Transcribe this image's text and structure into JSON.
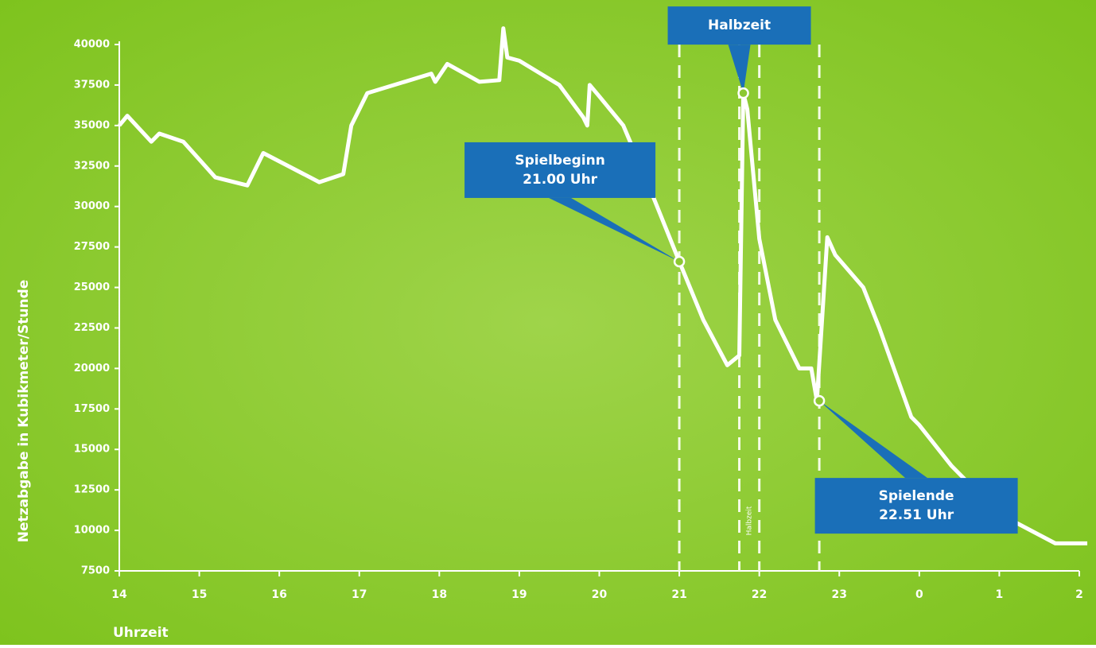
{
  "chart_data": {
    "type": "line",
    "x_label": "Uhrzeit",
    "y_label": "Netzabgabe in Kubikmeter/Stunde",
    "xlim": [
      14,
      26
    ],
    "xticks": [
      14,
      15,
      16,
      17,
      18,
      19,
      20,
      21,
      22,
      23,
      {
        "value": 24,
        "label": "0"
      },
      {
        "value": 25,
        "label": "1"
      },
      {
        "value": 26,
        "label": "2"
      }
    ],
    "ylim": [
      7500,
      40000
    ],
    "yticks": [
      {
        "value": 7500,
        "label": "7500"
      },
      {
        "value": 10000,
        "label": "10000"
      },
      {
        "value": 12500,
        "label": "12500"
      },
      {
        "value": 15000,
        "label": "15000"
      },
      {
        "value": 17500,
        "label": "17500"
      },
      {
        "value": 20000,
        "label": "20000"
      },
      {
        "value": 22500,
        "label": "22500"
      },
      {
        "value": 25000,
        "label": "25000"
      },
      {
        "value": 27500,
        "label": "27500"
      },
      {
        "value": 30000,
        "label": "30000"
      },
      {
        "value": 32500,
        "label": "32500"
      },
      {
        "value": 35000,
        "label": "35000"
      },
      {
        "value": 37500,
        "label": "37500"
      },
      {
        "value": 40000,
        "label": "40000"
      }
    ],
    "series": [
      {
        "color": "#ffffff",
        "x": [
          14.0,
          14.1,
          14.4,
          14.5,
          14.8,
          15.2,
          15.6,
          15.8,
          16.5,
          16.8,
          16.9,
          17.1,
          17.5,
          17.9,
          17.95,
          18.1,
          18.5,
          18.75,
          18.8,
          18.85,
          19.0,
          19.5,
          19.8,
          19.85,
          19.88,
          20.0,
          20.3,
          20.6,
          21.0,
          21.3,
          21.6,
          21.75,
          21.8,
          21.85,
          22.0,
          22.2,
          22.5,
          22.65,
          22.72,
          22.85,
          22.95,
          23.3,
          23.5,
          23.9,
          24.0,
          24.4,
          24.7,
          25.2,
          25.7,
          26.1
        ],
        "values": [
          35000,
          35600,
          34000,
          34500,
          34000,
          31800,
          31300,
          33300,
          31500,
          32000,
          35000,
          37000,
          37600,
          38200,
          37700,
          38800,
          37700,
          37800,
          41000,
          39200,
          39000,
          37500,
          35500,
          35000,
          37500,
          36800,
          35000,
          31500,
          26600,
          23000,
          20200,
          20800,
          37000,
          36000,
          28000,
          23000,
          20000,
          20000,
          18000,
          28100,
          27000,
          25000,
          22500,
          17000,
          16500,
          14000,
          12500,
          10500,
          9200,
          9200
        ]
      }
    ],
    "vlines": [
      21,
      21.75,
      22,
      22.75
    ],
    "vertical_note": "Halbzeit",
    "annotations": [
      {
        "lines": [
          "Spielbeginn",
          "21.00 Uhr"
        ],
        "x": 21.0,
        "y": 26600
      },
      {
        "lines": [
          "Halbzeit"
        ],
        "x": 21.8,
        "y": 37000
      },
      {
        "lines": [
          "Spielende",
          "22.51 Uhr"
        ],
        "x": 22.75,
        "y": 18000
      }
    ]
  }
}
